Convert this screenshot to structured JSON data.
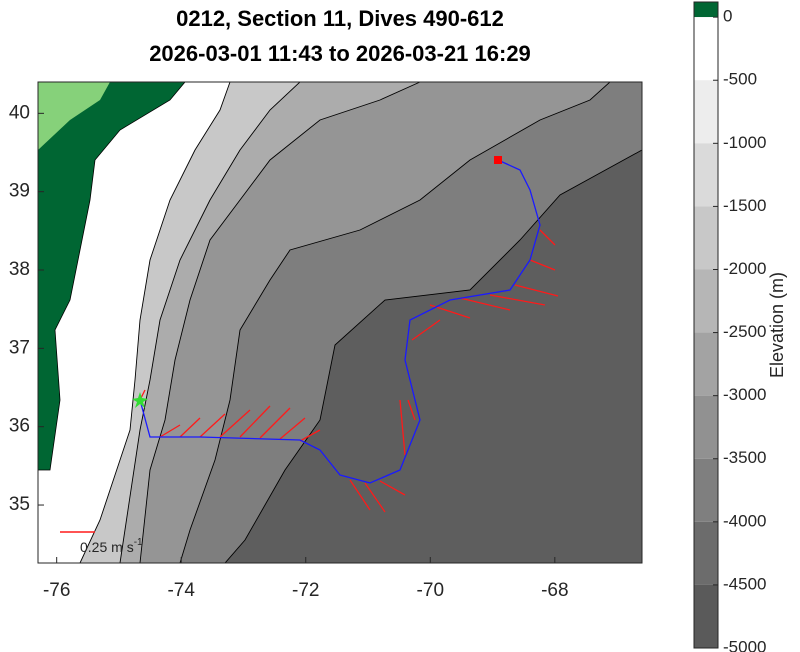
{
  "title": [
    "0212, Section 11, Dives 490-612",
    "2026-03-01 11:43 to 2026-03-21 16:29"
  ],
  "map": {
    "xlim": [
      -76.3,
      -66.6
    ],
    "ylim": [
      34.26,
      40.4
    ],
    "xticks": [
      -76,
      -74,
      -72,
      -70,
      -68
    ],
    "yticks": [
      35,
      36,
      37,
      38,
      39,
      40
    ],
    "scale_label": {
      "text": "0.25 m s",
      "exponent": "-1"
    }
  },
  "colorbar": {
    "label": "Elevation (m)",
    "lim": [
      -5000,
      120
    ],
    "ticks": [
      0,
      -500,
      -1000,
      -1500,
      -2000,
      -2500,
      -3000,
      -3500,
      -4000,
      -4500,
      -5000
    ],
    "land_color": "#006633"
  }
}
